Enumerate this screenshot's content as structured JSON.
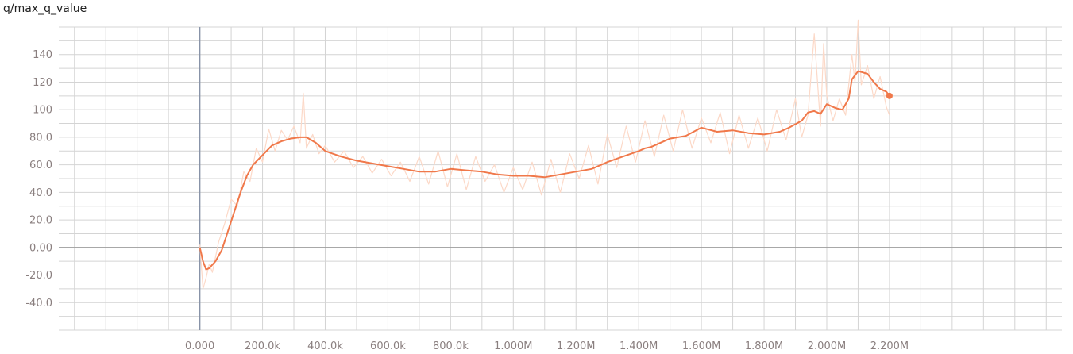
{
  "chart_data": {
    "type": "line",
    "title": "q/max_q_value",
    "xlabel": "",
    "ylabel": "",
    "xlim": [
      -450000,
      2750000
    ],
    "ylim": [
      -60,
      160
    ],
    "grid": true,
    "x_ticks": [
      0,
      200000,
      400000,
      600000,
      800000,
      1000000,
      1200000,
      1400000,
      1600000,
      1800000,
      2000000,
      2200000
    ],
    "x_tick_labels": [
      "0.000",
      "200.0k",
      "400.0k",
      "600.0k",
      "800.0k",
      "1.000M",
      "1.200M",
      "1.400M",
      "1.600M",
      "1.800M",
      "2.000M",
      "2.200M"
    ],
    "y_ticks": [
      -40,
      -20,
      0,
      20,
      40,
      60,
      80,
      100,
      120,
      140
    ],
    "y_tick_labels": [
      "-40.0",
      "-20.0",
      "0.00",
      "20.0",
      "40.0",
      "60.0",
      "80.0",
      "100",
      "120",
      "140"
    ],
    "colors": {
      "smoothed": "#f0784a",
      "raw": "#fcd9c8",
      "grid": "#d4d4d4",
      "zero_line": "#9e9e9e",
      "y_axis": "#8893a8",
      "tick_text": "#8a7f7f"
    },
    "series": [
      {
        "role": "smoothed",
        "x": [
          0,
          10000,
          20000,
          30000,
          50000,
          70000,
          90000,
          110000,
          130000,
          150000,
          170000,
          200000,
          230000,
          260000,
          290000,
          320000,
          340000,
          370000,
          400000,
          450000,
          500000,
          550000,
          600000,
          650000,
          700000,
          750000,
          800000,
          850000,
          900000,
          950000,
          1000000,
          1050000,
          1100000,
          1150000,
          1200000,
          1250000,
          1300000,
          1350000,
          1400000,
          1420000,
          1440000,
          1460000,
          1500000,
          1550000,
          1600000,
          1650000,
          1700000,
          1750000,
          1800000,
          1850000,
          1880000,
          1920000,
          1940000,
          1960000,
          1980000,
          2000000,
          2030000,
          2050000,
          2070000,
          2080000,
          2100000,
          2130000,
          2150000,
          2170000,
          2190000,
          2200000
        ],
        "y": [
          0,
          -10,
          -16,
          -15,
          -10,
          -2,
          12,
          26,
          40,
          52,
          60,
          67,
          74,
          77,
          79,
          80,
          80,
          76,
          70,
          66,
          63,
          61,
          59,
          57,
          55,
          55,
          57,
          56,
          55,
          53,
          52,
          52,
          51,
          53,
          55,
          57,
          62,
          66,
          70,
          72,
          73,
          75,
          79,
          81,
          87,
          84,
          85,
          83,
          82,
          84,
          87,
          92,
          98,
          99,
          97,
          104,
          101,
          100,
          108,
          122,
          128,
          126,
          120,
          115,
          113,
          110
        ]
      },
      {
        "role": "raw",
        "x": [
          0,
          10000,
          20000,
          30000,
          40000,
          60000,
          80000,
          100000,
          120000,
          140000,
          160000,
          180000,
          200000,
          220000,
          240000,
          260000,
          280000,
          300000,
          320000,
          330000,
          340000,
          360000,
          380000,
          400000,
          430000,
          460000,
          490000,
          520000,
          550000,
          580000,
          610000,
          640000,
          670000,
          700000,
          730000,
          760000,
          790000,
          820000,
          850000,
          880000,
          910000,
          940000,
          970000,
          1000000,
          1030000,
          1060000,
          1090000,
          1120000,
          1150000,
          1180000,
          1210000,
          1240000,
          1270000,
          1300000,
          1330000,
          1360000,
          1390000,
          1420000,
          1450000,
          1480000,
          1510000,
          1540000,
          1570000,
          1600000,
          1630000,
          1660000,
          1690000,
          1720000,
          1750000,
          1780000,
          1810000,
          1840000,
          1870000,
          1900000,
          1920000,
          1940000,
          1960000,
          1980000,
          1990000,
          2000000,
          2020000,
          2040000,
          2060000,
          2080000,
          2090000,
          2100000,
          2110000,
          2130000,
          2150000,
          2170000,
          2190000,
          2200000
        ],
        "y": [
          2,
          -30,
          -22,
          -12,
          -18,
          4,
          18,
          35,
          30,
          55,
          48,
          72,
          62,
          86,
          70,
          85,
          78,
          88,
          76,
          112,
          72,
          82,
          68,
          74,
          62,
          70,
          58,
          66,
          54,
          64,
          52,
          62,
          48,
          66,
          46,
          70,
          44,
          68,
          42,
          66,
          48,
          60,
          40,
          58,
          42,
          62,
          38,
          64,
          40,
          68,
          50,
          74,
          46,
          82,
          58,
          88,
          62,
          92,
          66,
          96,
          70,
          100,
          72,
          94,
          76,
          98,
          68,
          96,
          72,
          94,
          70,
          100,
          78,
          108,
          80,
          96,
          155,
          88,
          148,
          110,
          92,
          108,
          96,
          140,
          120,
          165,
          118,
          132,
          108,
          124,
          102,
          96
        ]
      }
    ]
  }
}
